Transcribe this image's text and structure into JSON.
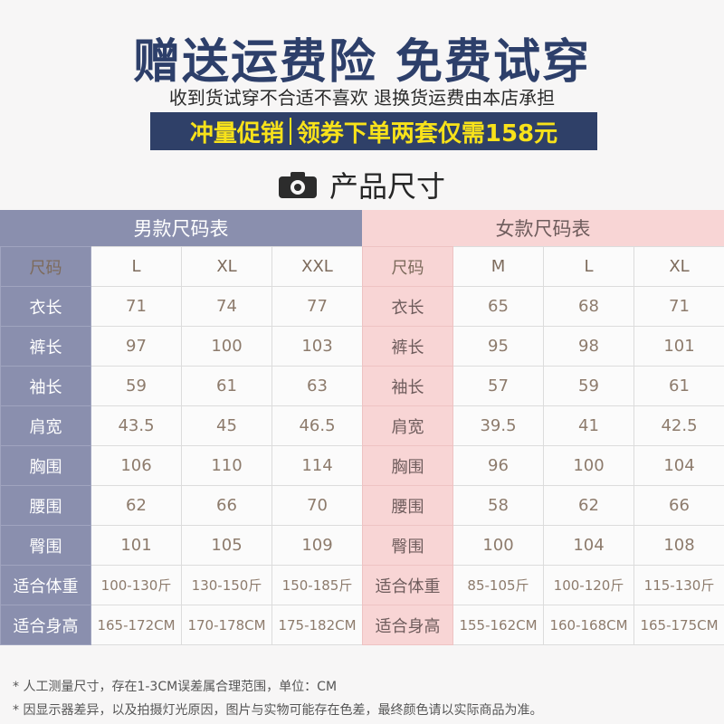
{
  "header": {
    "title": "赠送运费险 免费试穿",
    "subtitle": "收到货试穿不合适不喜欢 退换货运费由本店承担",
    "promo_left": "冲量促销",
    "promo_right": "领券下单两套仅需158元",
    "promo_text_color": "#f8e21a",
    "promo_bg_color": "#2f4068"
  },
  "section": {
    "title": "产品尺寸",
    "icon": "camera-icon"
  },
  "men": {
    "title": "男款尺码表",
    "color": "#8a8fae",
    "rows": [
      {
        "label": "尺码",
        "values": [
          "L",
          "XL",
          "XXL"
        ]
      },
      {
        "label": "衣长",
        "values": [
          "71",
          "74",
          "77"
        ]
      },
      {
        "label": "裤长",
        "values": [
          "97",
          "100",
          "103"
        ]
      },
      {
        "label": "袖长",
        "values": [
          "59",
          "61",
          "63"
        ]
      },
      {
        "label": "肩宽",
        "values": [
          "43.5",
          "45",
          "46.5"
        ]
      },
      {
        "label": "胸围",
        "values": [
          "106",
          "110",
          "114"
        ]
      },
      {
        "label": "腰围",
        "values": [
          "62",
          "66",
          "70"
        ]
      },
      {
        "label": "臀围",
        "values": [
          "101",
          "105",
          "109"
        ]
      },
      {
        "label": "适合体重",
        "values": [
          "100-130斤",
          "130-150斤",
          "150-185斤"
        ]
      },
      {
        "label": "适合身高",
        "values": [
          "165-172CM",
          "170-178CM",
          "175-182CM"
        ]
      }
    ]
  },
  "women": {
    "title": "女款尺码表",
    "color": "#f8d5d5",
    "rows": [
      {
        "label": "尺码",
        "values": [
          "M",
          "L",
          "XL"
        ]
      },
      {
        "label": "衣长",
        "values": [
          "65",
          "68",
          "71"
        ]
      },
      {
        "label": "裤长",
        "values": [
          "95",
          "98",
          "101"
        ]
      },
      {
        "label": "袖长",
        "values": [
          "57",
          "59",
          "61"
        ]
      },
      {
        "label": "肩宽",
        "values": [
          "39.5",
          "41",
          "42.5"
        ]
      },
      {
        "label": "胸围",
        "values": [
          "96",
          "100",
          "104"
        ]
      },
      {
        "label": "腰围",
        "values": [
          "58",
          "62",
          "66"
        ]
      },
      {
        "label": "臀围",
        "values": [
          "100",
          "104",
          "108"
        ]
      },
      {
        "label": "适合体重",
        "values": [
          "85-105斤",
          "100-120斤",
          "115-130斤"
        ]
      },
      {
        "label": "适合身高",
        "values": [
          "155-162CM",
          "160-168CM",
          "165-175CM"
        ]
      }
    ]
  },
  "notes": [
    "* 人工测量尺寸，存在1-3CM误差属合理范围，单位：CM",
    "* 因显示器差异，以及拍摄灯光原因，图片与实物可能存在色差，最终颜色请以实际商品为准。"
  ]
}
